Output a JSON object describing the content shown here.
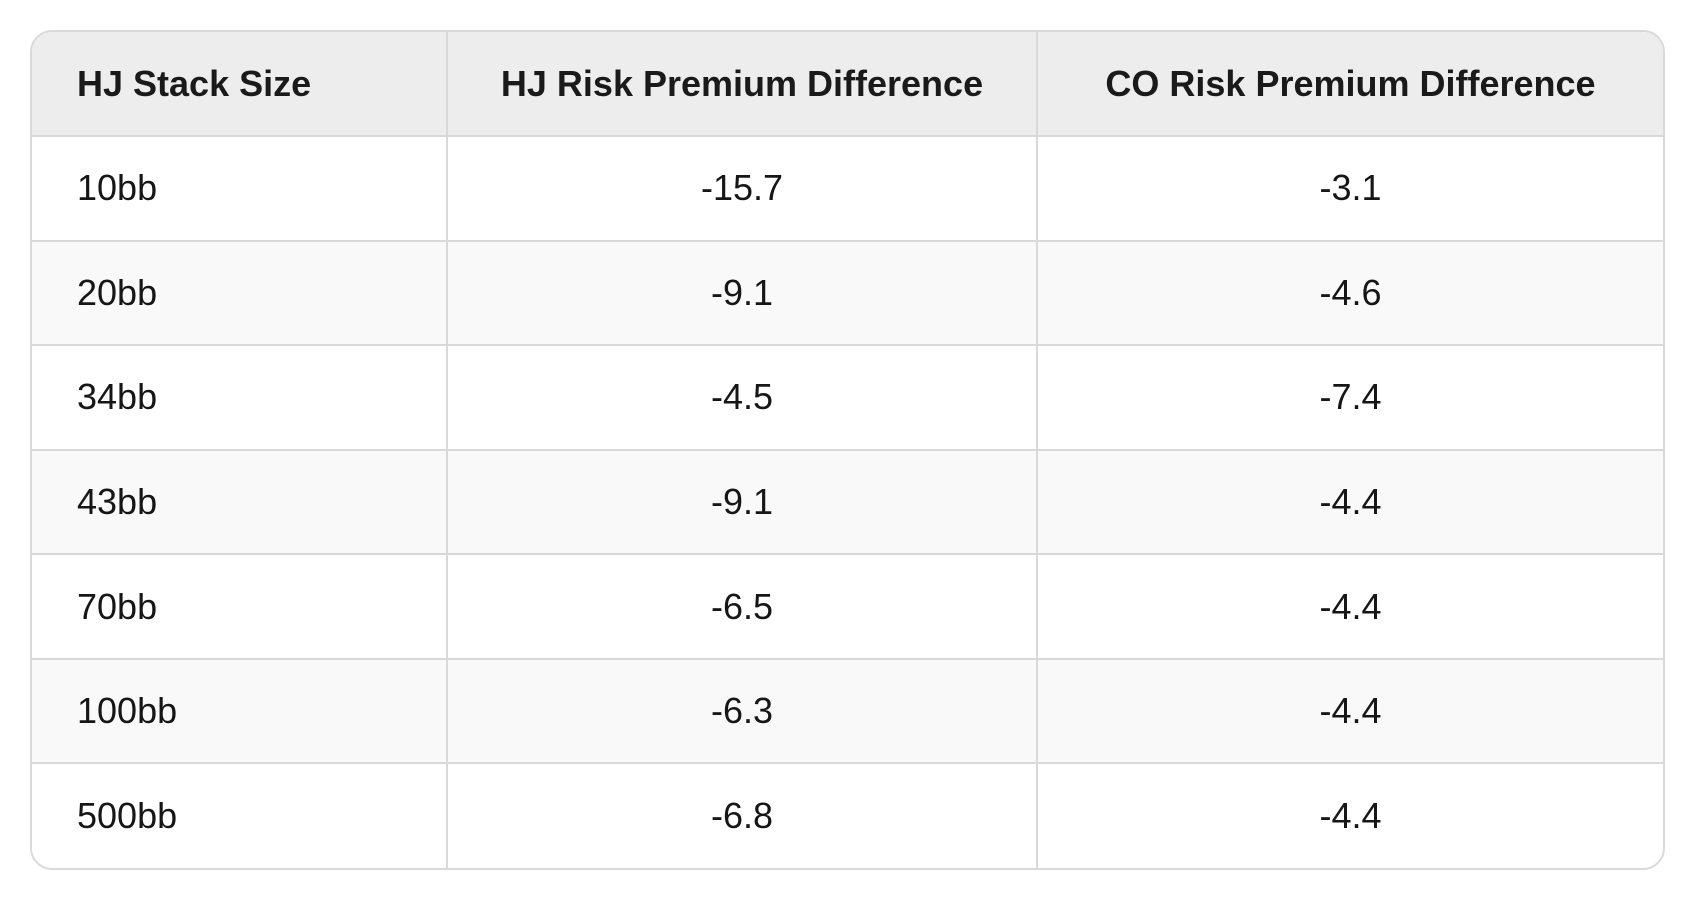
{
  "table": {
    "headers": {
      "stack_size": "HJ Stack Size",
      "hj_risk": "HJ Risk Premium Difference",
      "co_risk": "CO Risk Premium Difference"
    },
    "rows": [
      {
        "stack": "10bb",
        "hj": "-15.7",
        "co": "-3.1"
      },
      {
        "stack": "20bb",
        "hj": "-9.1",
        "co": "-4.6"
      },
      {
        "stack": "34bb",
        "hj": "-4.5",
        "co": "-7.4"
      },
      {
        "stack": "43bb",
        "hj": "-9.1",
        "co": "-4.4"
      },
      {
        "stack": "70bb",
        "hj": "-6.5",
        "co": "-4.4"
      },
      {
        "stack": "100bb",
        "hj": "-6.3",
        "co": "-4.4"
      },
      {
        "stack": "500bb",
        "hj": "-6.8",
        "co": "-4.4"
      }
    ]
  },
  "colors": {
    "header_bg": "#eeedee",
    "border": "#d9d9d9",
    "stripe": "#f9f9f9"
  }
}
